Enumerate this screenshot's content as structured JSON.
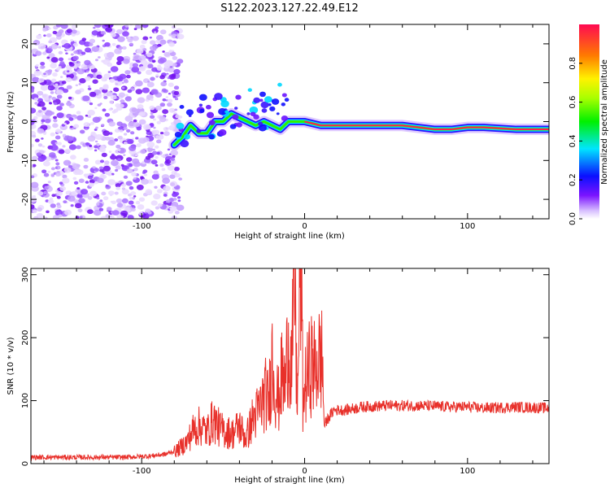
{
  "figure": {
    "title": "S122.2023.127.22.49.E12"
  },
  "chart_data": [
    {
      "type": "heatmap",
      "xlabel": "Height of straight line (km)",
      "ylabel": "Frequency (Hz)",
      "xlim": [
        -168,
        150
      ],
      "ylim": [
        -25,
        25
      ],
      "xticks": [
        -100,
        0,
        100
      ],
      "yticks": [
        -20,
        -10,
        0,
        10,
        20
      ],
      "colorbar": {
        "label": "Normalized spectral amplitude",
        "range": [
          0,
          1
        ],
        "ticks": [
          "0.0",
          "0.2",
          "0.4",
          "0.6",
          "0.8"
        ]
      },
      "noise_region_x": [
        -168,
        -80
      ],
      "signal_track": {
        "x": [
          -80,
          -75,
          -70,
          -65,
          -60,
          -55,
          -50,
          -45,
          -40,
          -35,
          -30,
          -25,
          -20,
          -15,
          -10,
          -5,
          0,
          5,
          10,
          20,
          40,
          60,
          70,
          80,
          90,
          100,
          110,
          130,
          150
        ],
        "y": [
          -6,
          -4,
          -1,
          -3,
          -3,
          0,
          0,
          2,
          1,
          0,
          -1,
          0,
          -1,
          -2,
          0,
          0,
          0,
          -0.5,
          -1,
          -1,
          -1,
          -1,
          -1.5,
          -2,
          -2,
          -1.5,
          -1.5,
          -2,
          -2
        ]
      }
    },
    {
      "type": "line",
      "xlabel": "Height of straight line (km)",
      "ylabel": "SNR (10 * v/v)",
      "xlim": [
        -168,
        150
      ],
      "ylim": [
        0,
        310
      ],
      "xticks": [
        -100,
        0,
        100
      ],
      "yticks": [
        0,
        100,
        200,
        300
      ],
      "color": "#e8302a",
      "series": [
        {
          "x": [
            -168,
            -150,
            -130,
            -110,
            -95,
            -85,
            -78,
            -72,
            -68,
            -64,
            -60,
            -56,
            -52,
            -48,
            -44,
            -40,
            -36,
            -32,
            -28,
            -24,
            -22,
            -20,
            -18,
            -16,
            -14,
            -12,
            -10,
            -8,
            -6,
            -5,
            -4,
            -3,
            -2,
            -1,
            0,
            2,
            4,
            6,
            8,
            10,
            11,
            12,
            14,
            18,
            25,
            35,
            50,
            70,
            90,
            100,
            110,
            130,
            150
          ],
          "values": [
            10,
            10,
            10,
            10,
            12,
            15,
            22,
            35,
            55,
            60,
            50,
            70,
            55,
            50,
            48,
            60,
            40,
            70,
            85,
            110,
            95,
            170,
            120,
            100,
            140,
            120,
            200,
            150,
            290,
            140,
            110,
            320,
            300,
            90,
            120,
            140,
            160,
            150,
            160,
            170,
            160,
            60,
            70,
            85,
            85,
            90,
            92,
            92,
            90,
            90,
            88,
            90,
            88
          ]
        }
      ]
    }
  ]
}
